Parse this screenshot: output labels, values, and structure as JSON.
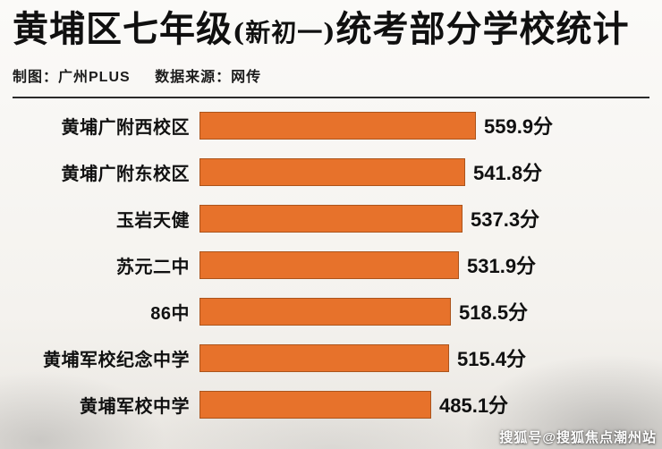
{
  "header": {
    "title_prefix": "黄埔区七年级",
    "title_paren": "(新初一)",
    "title_suffix": "统考部分学校统计",
    "credit": "制图：广州PLUS",
    "source": "数据来源：网传"
  },
  "watermark": "搜狐号@搜狐焦点潮州站",
  "chart_data": {
    "type": "bar",
    "orientation": "horizontal",
    "title": "黄埔区七年级(新初一)统考部分学校统计",
    "categories": [
      "黄埔广附西校区",
      "黄埔广附东校区",
      "玉岩天健",
      "苏元二中",
      "86中",
      "黄埔军校纪念中学",
      "黄埔军校中学"
    ],
    "values": [
      559.9,
      541.8,
      537.3,
      531.9,
      518.5,
      515.4,
      485.1
    ],
    "value_suffix": "分",
    "bar_color": "#e7722b",
    "xlim": [
      0,
      600
    ],
    "grid": false,
    "legend": false
  }
}
